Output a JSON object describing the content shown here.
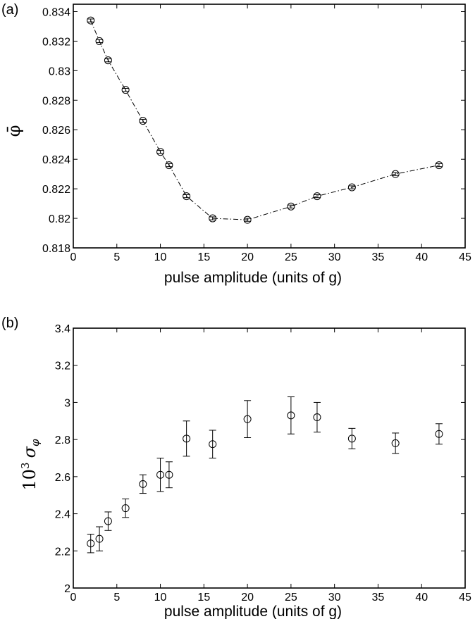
{
  "chart_data": [
    {
      "panel_label": "(a)",
      "type": "line",
      "xlabel": "pulse amplitude (units of g)",
      "ylabel": "φ̄",
      "xlim": [
        0,
        45
      ],
      "ylim": [
        0.818,
        0.8345
      ],
      "xticks": [
        0,
        5,
        10,
        15,
        20,
        25,
        30,
        35,
        40,
        45
      ],
      "yticks": [
        0.818,
        0.82,
        0.822,
        0.824,
        0.826,
        0.828,
        0.83,
        0.832,
        0.834
      ],
      "ytick_labels": [
        "0.818",
        "0.82",
        "0.822",
        "0.824",
        "0.826",
        "0.828",
        "0.83",
        "0.832",
        "0.834"
      ],
      "x": [
        2,
        3,
        4,
        6,
        8,
        10,
        11,
        13,
        16,
        20,
        25,
        28,
        32,
        37,
        42
      ],
      "y": [
        0.8334,
        0.832,
        0.8307,
        0.8287,
        0.8266,
        0.8245,
        0.8236,
        0.8215,
        0.82,
        0.8199,
        0.8208,
        0.8215,
        0.8221,
        0.823,
        0.8236
      ],
      "yerr": [
        0.0001,
        0.0001,
        0.0001,
        0.0001,
        0.0001,
        0.0001,
        0.0001,
        0.0001,
        0.0001,
        0.0001,
        0.0001,
        0.0001,
        0.0001,
        0.0001,
        0.0001
      ],
      "line_style": "dash-dot",
      "marker": "open-circle",
      "grid": false
    },
    {
      "panel_label": "(b)",
      "type": "scatter",
      "xlabel": "pulse amplitude (units of g)",
      "ylabel_main": "10",
      "ylabel_sup": "3",
      "ylabel_sigma": "σ",
      "ylabel_sub": "φ",
      "xlim": [
        0,
        45
      ],
      "ylim": [
        2,
        3.4
      ],
      "xticks": [
        0,
        5,
        10,
        15,
        20,
        25,
        30,
        35,
        40,
        45
      ],
      "yticks": [
        2,
        2.2,
        2.4,
        2.6,
        2.8,
        3,
        3.2,
        3.4
      ],
      "ytick_labels": [
        "2",
        "2.2",
        "2.4",
        "2.6",
        "2.8",
        "3",
        "3.2",
        "3.4"
      ],
      "x": [
        2,
        3,
        4,
        6,
        8,
        10,
        11,
        13,
        16,
        20,
        25,
        28,
        32,
        37,
        42
      ],
      "y": [
        2.24,
        2.265,
        2.36,
        2.43,
        2.56,
        2.61,
        2.61,
        2.805,
        2.775,
        2.91,
        2.93,
        2.92,
        2.805,
        2.78,
        2.83
      ],
      "yerr": [
        0.05,
        0.065,
        0.05,
        0.05,
        0.05,
        0.09,
        0.07,
        0.095,
        0.075,
        0.1,
        0.1,
        0.08,
        0.055,
        0.055,
        0.055
      ],
      "marker": "open-circle",
      "grid": false
    }
  ]
}
